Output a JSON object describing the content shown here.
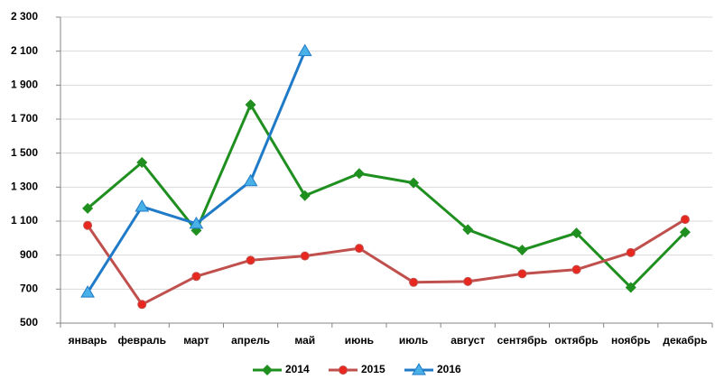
{
  "chart_data": {
    "type": "line",
    "categories": [
      "январь",
      "февраль",
      "март",
      "апрель",
      "май",
      "июнь",
      "июль",
      "август",
      "сентябрь",
      "октябрь",
      "ноябрь",
      "декабрь"
    ],
    "series": [
      {
        "name": "2014",
        "color": "#1f8f1f",
        "marker": "diamond",
        "values": [
          1175,
          1445,
          1045,
          1785,
          1250,
          1380,
          1325,
          1050,
          930,
          1030,
          710,
          1035
        ]
      },
      {
        "name": "2015",
        "color": "#c0504d",
        "marker": "circle",
        "values": [
          1075,
          610,
          775,
          870,
          895,
          940,
          740,
          745,
          790,
          815,
          915,
          1110
        ]
      },
      {
        "name": "2016",
        "color": "#1f7bc8",
        "marker": "triangle",
        "values": [
          680,
          1185,
          1085,
          1335,
          2100,
          null,
          null,
          null,
          null,
          null,
          null,
          null
        ]
      }
    ],
    "ylim": [
      500,
      2300
    ],
    "yticks": [
      500,
      700,
      900,
      {
        "value": 1100,
        "label": "1 100"
      },
      {
        "value": 1300,
        "label": "1 300"
      },
      {
        "value": 1500,
        "label": "1 500"
      },
      {
        "value": 1700,
        "label": "1 700"
      },
      {
        "value": 1900,
        "label": "1 900"
      },
      {
        "value": 2100,
        "label": "2 100"
      },
      {
        "value": 2300,
        "label": "2 300"
      }
    ],
    "grid": true,
    "legend": "bottom"
  }
}
